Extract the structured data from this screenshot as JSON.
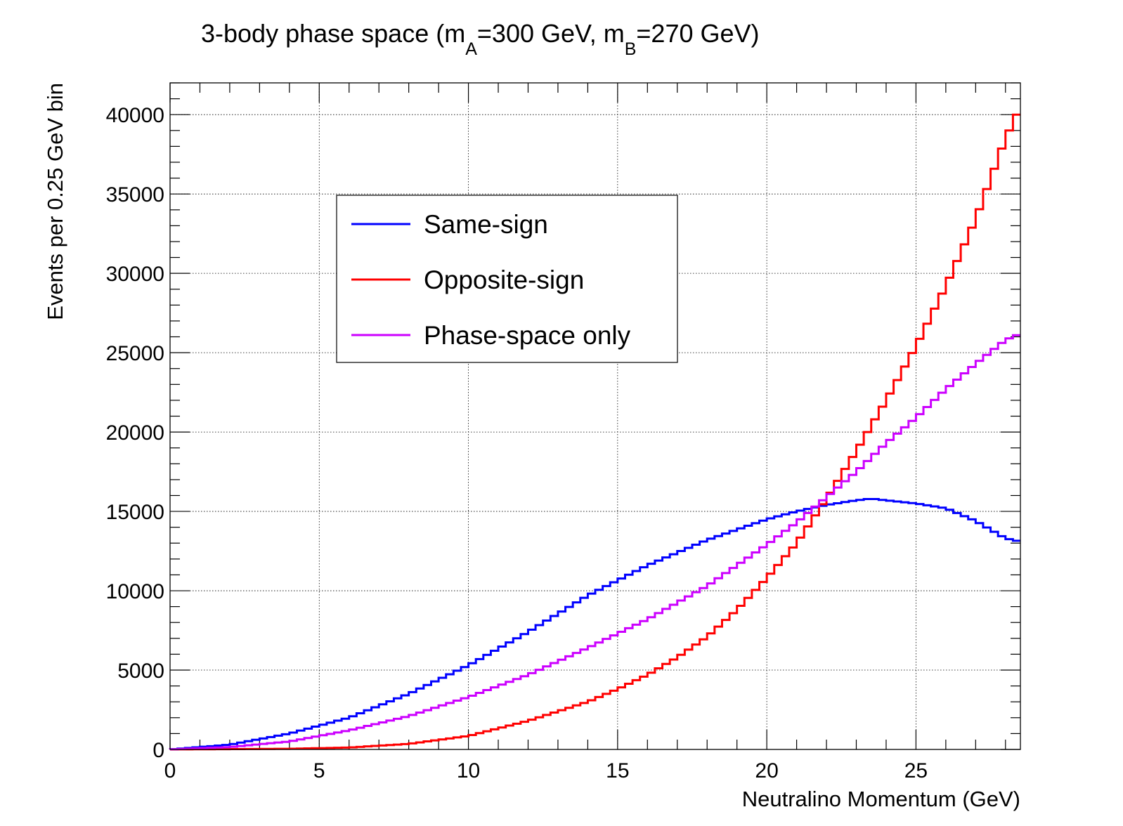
{
  "chart_data": {
    "type": "histogram-step",
    "title": "3-body phase space (m",
    "title_sub_a": "A",
    "title_mid": "=300 GeV, m",
    "title_sub_b": "B",
    "title_end": "=270 GeV)",
    "xlabel": "Neutralino Momentum (GeV)",
    "ylabel": "Events per 0.25 GeV bin",
    "xlim": [
      0,
      28.5
    ],
    "ylim": [
      0,
      42000
    ],
    "x_ticks": [
      0,
      5,
      10,
      15,
      20,
      25
    ],
    "y_ticks": [
      0,
      5000,
      10000,
      15000,
      20000,
      25000,
      30000,
      35000,
      40000
    ],
    "x_tick_labels": [
      "0",
      "5",
      "10",
      "15",
      "20",
      "25"
    ],
    "y_tick_labels": [
      "0",
      "5000",
      "10000",
      "15000",
      "20000",
      "25000",
      "30000",
      "35000",
      "40000"
    ],
    "grid": true,
    "legend_position": "upper-left-center",
    "bin_width": 0.25,
    "anchors": {
      "same_sign": [
        [
          0,
          0
        ],
        [
          2,
          300
        ],
        [
          4,
          1000
        ],
        [
          6,
          2000
        ],
        [
          8,
          3500
        ],
        [
          10,
          5300
        ],
        [
          12,
          7400
        ],
        [
          14,
          9700
        ],
        [
          16,
          11600
        ],
        [
          18,
          13200
        ],
        [
          20,
          14500
        ],
        [
          21,
          15000
        ],
        [
          22,
          15400
        ],
        [
          23,
          15700
        ],
        [
          23.5,
          15800
        ],
        [
          24,
          15700
        ],
        [
          25,
          15500
        ],
        [
          26,
          15200
        ],
        [
          27,
          14400
        ],
        [
          28,
          13300
        ],
        [
          28.5,
          13100
        ]
      ],
      "opposite_sign": [
        [
          0,
          0
        ],
        [
          4,
          40
        ],
        [
          6,
          120
        ],
        [
          8,
          350
        ],
        [
          10,
          850
        ],
        [
          12,
          1800
        ],
        [
          14,
          3000
        ],
        [
          15,
          3800
        ],
        [
          16,
          4700
        ],
        [
          17,
          5800
        ],
        [
          18,
          7100
        ],
        [
          19,
          8800
        ],
        [
          20,
          10800
        ],
        [
          21,
          13000
        ],
        [
          22,
          15800
        ],
        [
          23,
          18800
        ],
        [
          24,
          22000
        ],
        [
          25,
          25400
        ],
        [
          26,
          29200
        ],
        [
          27,
          33400
        ],
        [
          28,
          38500
        ],
        [
          28.5,
          40500
        ]
      ],
      "phase_space_only": [
        [
          0,
          0
        ],
        [
          2,
          150
        ],
        [
          4,
          500
        ],
        [
          6,
          1200
        ],
        [
          8,
          2100
        ],
        [
          10,
          3300
        ],
        [
          12,
          4700
        ],
        [
          14,
          6400
        ],
        [
          16,
          8200
        ],
        [
          18,
          10300
        ],
        [
          20,
          12900
        ],
        [
          21,
          14300
        ],
        [
          22,
          15900
        ],
        [
          23,
          17500
        ],
        [
          24,
          19300
        ],
        [
          25,
          20900
        ],
        [
          26,
          22700
        ],
        [
          27,
          24300
        ],
        [
          28,
          25800
        ],
        [
          28.5,
          26200
        ]
      ]
    },
    "series": [
      {
        "key": "same_sign",
        "name": "Same-sign",
        "color": "#0000ff"
      },
      {
        "key": "opposite_sign",
        "name": "Opposite-sign",
        "color": "#ff0000"
      },
      {
        "key": "phase_space_only",
        "name": "Phase-space only",
        "color": "#cc00ff"
      }
    ]
  }
}
